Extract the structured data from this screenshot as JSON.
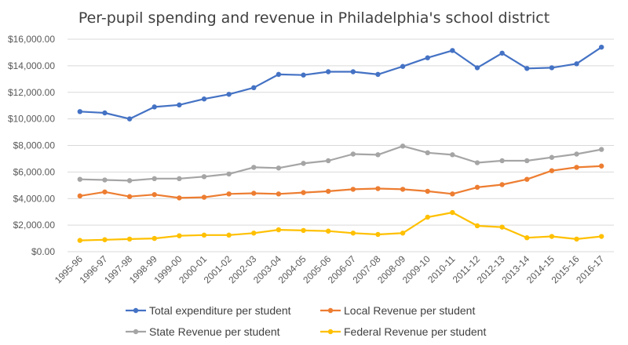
{
  "chart_data": {
    "type": "line",
    "title": "Per-pupil spending and revenue in Philadelphia's school district",
    "xlabel": "",
    "ylabel": "",
    "ylim": [
      0,
      16000
    ],
    "yticks": [
      "$0.00",
      "$2,000.00",
      "$4,000.00",
      "$6,000.00",
      "$8,000.00",
      "$10,000.00",
      "$12,000.00",
      "$14,000.00",
      "$16,000.00"
    ],
    "categories": [
      "1995-96",
      "1996-97",
      "1997-98",
      "1998-99",
      "1999-00",
      "2000-01",
      "2001-02",
      "2002-03",
      "2003-04",
      "2004-05",
      "2005-06",
      "2006-07",
      "2007-08",
      "2008-09",
      "2009-10",
      "2010-11",
      "2011-12",
      "2012-13",
      "2013-14",
      "2014-15",
      "2015-16",
      "2016-17"
    ],
    "grid": true,
    "legend": "bottom",
    "series": [
      {
        "name": "Total expenditure per student",
        "color": "#4472c4",
        "values": [
          10550,
          10450,
          10000,
          10900,
          11050,
          11500,
          11850,
          12350,
          13350,
          13300,
          13550,
          13550,
          13350,
          13950,
          14600,
          15150,
          13850,
          14950,
          13800,
          13850,
          14150,
          15400
        ]
      },
      {
        "name": "Local Revenue per student",
        "color": "#ed7d31",
        "values": [
          4200,
          4500,
          4150,
          4300,
          4050,
          4100,
          4350,
          4400,
          4350,
          4450,
          4550,
          4700,
          4750,
          4700,
          4550,
          4350,
          4850,
          5050,
          5450,
          6100,
          6350,
          6450
        ]
      },
      {
        "name": "State Revenue per student",
        "color": "#a5a5a5",
        "values": [
          5450,
          5400,
          5350,
          5500,
          5500,
          5650,
          5850,
          6350,
          6300,
          6650,
          6850,
          7350,
          7300,
          7950,
          7450,
          7300,
          6700,
          6850,
          6850,
          7100,
          7350,
          7700
        ]
      },
      {
        "name": "Federal Revenue per student",
        "color": "#ffc000",
        "values": [
          850,
          900,
          950,
          1000,
          1200,
          1250,
          1250,
          1400,
          1650,
          1600,
          1550,
          1400,
          1300,
          1400,
          2600,
          2950,
          1950,
          1850,
          1050,
          1150,
          950,
          1150
        ]
      }
    ]
  }
}
